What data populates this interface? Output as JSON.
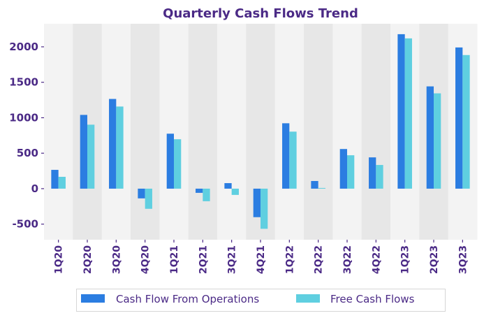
{
  "chart_data": {
    "type": "bar",
    "title": "Quarterly Cash Flows Trend",
    "xlabel": "",
    "ylabel": "",
    "categories": [
      "1Q20",
      "2Q20",
      "3Q20",
      "4Q20",
      "1Q21",
      "2Q21",
      "3Q21",
      "4Q21",
      "1Q22",
      "2Q22",
      "3Q22",
      "4Q22",
      "1Q23",
      "2Q23",
      "3Q23"
    ],
    "series": [
      {
        "name": "Cash Flow From Operations",
        "color": "#2b7de1",
        "values": [
          265,
          1040,
          1265,
          -137,
          775,
          -59,
          78,
          -402,
          922,
          108,
          559,
          441,
          2178,
          1442,
          1991
        ]
      },
      {
        "name": "Free Cash Flows",
        "color": "#5fcfe0",
        "values": [
          167,
          902,
          1158,
          -284,
          697,
          -177,
          -88,
          -566,
          804,
          10,
          471,
          334,
          2119,
          1344,
          1884
        ]
      }
    ],
    "ylim": [
      -720,
      2325
    ],
    "yticks": [
      -500,
      0,
      500,
      1000,
      1500,
      2000
    ],
    "grid": false,
    "band_colors": [
      "#f3f3f3",
      "#e7e7e7"
    ],
    "legend_position": "bottom-center"
  }
}
